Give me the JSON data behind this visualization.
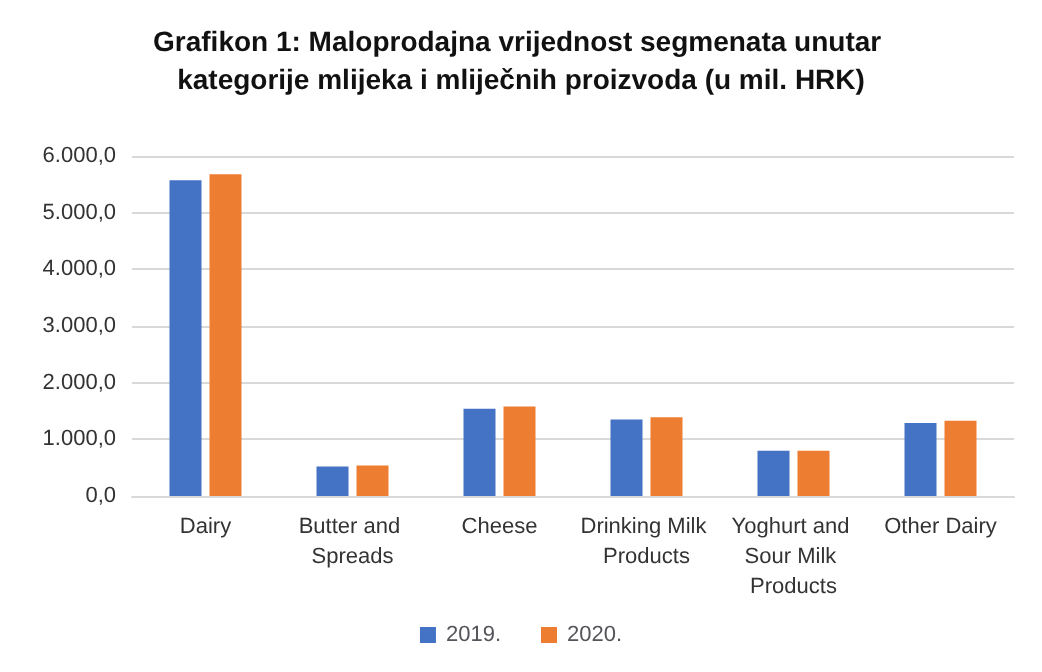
{
  "chart_data": {
    "type": "bar",
    "title": "Grafikon 1: Maloprodajna vrijednost segmenata unutar kategorije mlijeka i mliječnih proizvoda (u mil. HRK)",
    "categories": [
      "Dairy",
      "Butter and Spreads",
      "Cheese",
      "Drinking Milk Products",
      "Yoghurt and Sour Milk Products",
      "Other Dairy"
    ],
    "series": [
      {
        "name": "2019.",
        "color": "#4472c4",
        "values": [
          5570,
          520,
          1540,
          1350,
          800,
          1290
        ]
      },
      {
        "name": "2020.",
        "color": "#ed7d31",
        "values": [
          5680,
          540,
          1580,
          1390,
          800,
          1330
        ]
      }
    ],
    "ylim": [
      0,
      6000
    ],
    "yticks": [
      {
        "value": 0,
        "label": "0,0"
      },
      {
        "value": 1000,
        "label": "1.000,0"
      },
      {
        "value": 2000,
        "label": "2.000,0"
      },
      {
        "value": 3000,
        "label": "3.000,0"
      },
      {
        "value": 4000,
        "label": "4.000,0"
      },
      {
        "value": 5000,
        "label": "5.000,0"
      },
      {
        "value": 6000,
        "label": "6.000,0"
      }
    ],
    "grid": "y",
    "legend": "bottom"
  }
}
